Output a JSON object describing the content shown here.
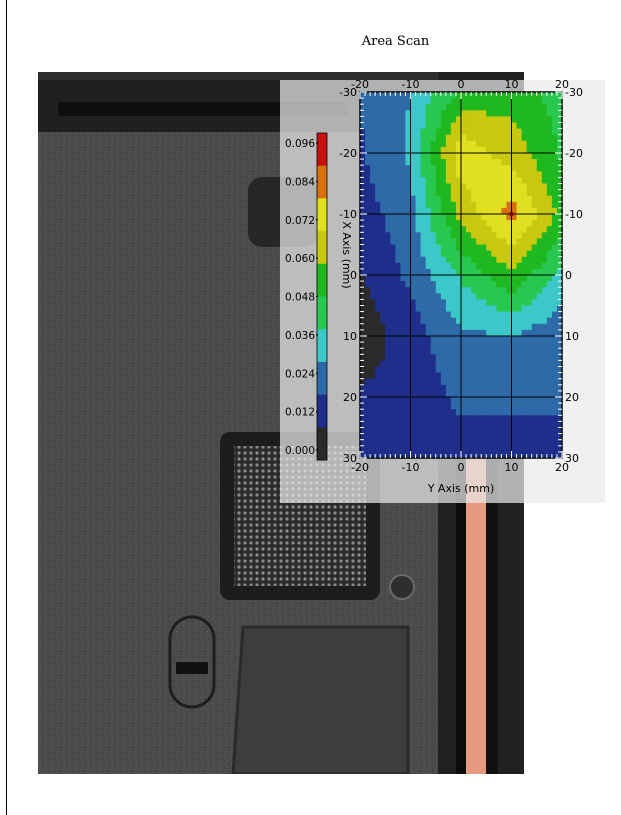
{
  "title": "Area Scan",
  "chart_data": {
    "type": "heatmap",
    "title": "Area Scan",
    "xlabel": "Y Axis (mm)",
    "ylabel": "X Axis (mm)",
    "x_ticks": [
      -20,
      -10,
      0,
      10,
      20
    ],
    "y_ticks": [
      -30,
      -20,
      -10,
      0,
      10,
      20,
      30
    ],
    "xlim": [
      -20,
      20
    ],
    "ylim": [
      -30,
      30
    ],
    "grid": true,
    "colorbar": {
      "ticks": [
        "0.096",
        "0.084",
        "0.072",
        "0.060",
        "0.048",
        "0.036",
        "0.024",
        "0.012",
        "0.000"
      ],
      "range": [
        0,
        0.096
      ],
      "colors": [
        "#2a2a2a",
        "#1e2e8a",
        "#2e6aa8",
        "#3cc8c8",
        "#28c850",
        "#20b820",
        "#c8c810",
        "#e0e020",
        "#d87010",
        "#c81010"
      ]
    },
    "x": [
      -20,
      -10,
      0,
      10,
      20
    ],
    "y": [
      -30,
      -20,
      -10,
      0,
      10,
      20,
      30
    ],
    "values": [
      [
        0.022,
        0.032,
        0.055,
        0.06,
        0.048
      ],
      [
        0.02,
        0.034,
        0.082,
        0.07,
        0.052
      ],
      [
        0.016,
        0.028,
        0.068,
        0.09,
        0.06
      ],
      [
        0.01,
        0.024,
        0.044,
        0.062,
        0.04
      ],
      [
        0.004,
        0.016,
        0.03,
        0.032,
        0.024
      ],
      [
        0.012,
        0.014,
        0.024,
        0.022,
        0.022
      ],
      [
        0.012,
        0.012,
        0.016,
        0.02,
        0.02
      ]
    ]
  }
}
